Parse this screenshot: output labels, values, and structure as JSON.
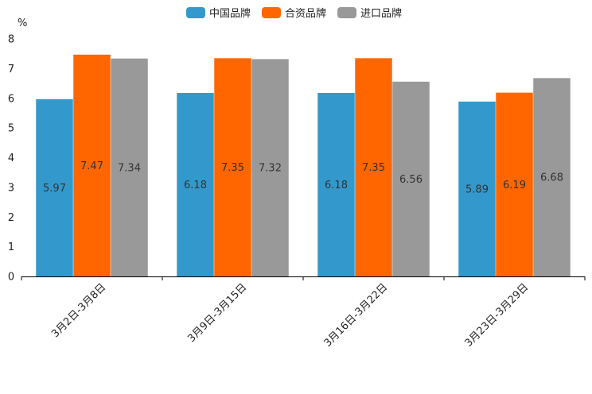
{
  "chart_data": {
    "type": "bar",
    "title": "",
    "ylabel": "%",
    "xlabel": "",
    "ylim": [
      0,
      8
    ],
    "yticks": [
      0,
      1,
      2,
      3,
      4,
      5,
      6,
      7,
      8
    ],
    "categories": [
      "3月2日-3月8日",
      "3月9日-3月15日",
      "3月16日-3月22日",
      "3月23日-3月29日"
    ],
    "series": [
      {
        "name": "中国品牌",
        "color": "#3399cc",
        "values": [
          5.97,
          6.18,
          6.18,
          5.89
        ]
      },
      {
        "name": "合资品牌",
        "color": "#ff6600",
        "values": [
          7.47,
          7.35,
          7.35,
          6.19
        ]
      },
      {
        "name": "进口品牌",
        "color": "#999999",
        "values": [
          7.34,
          7.32,
          6.56,
          6.68
        ]
      }
    ],
    "legend_position": "top-center",
    "grid": false
  }
}
